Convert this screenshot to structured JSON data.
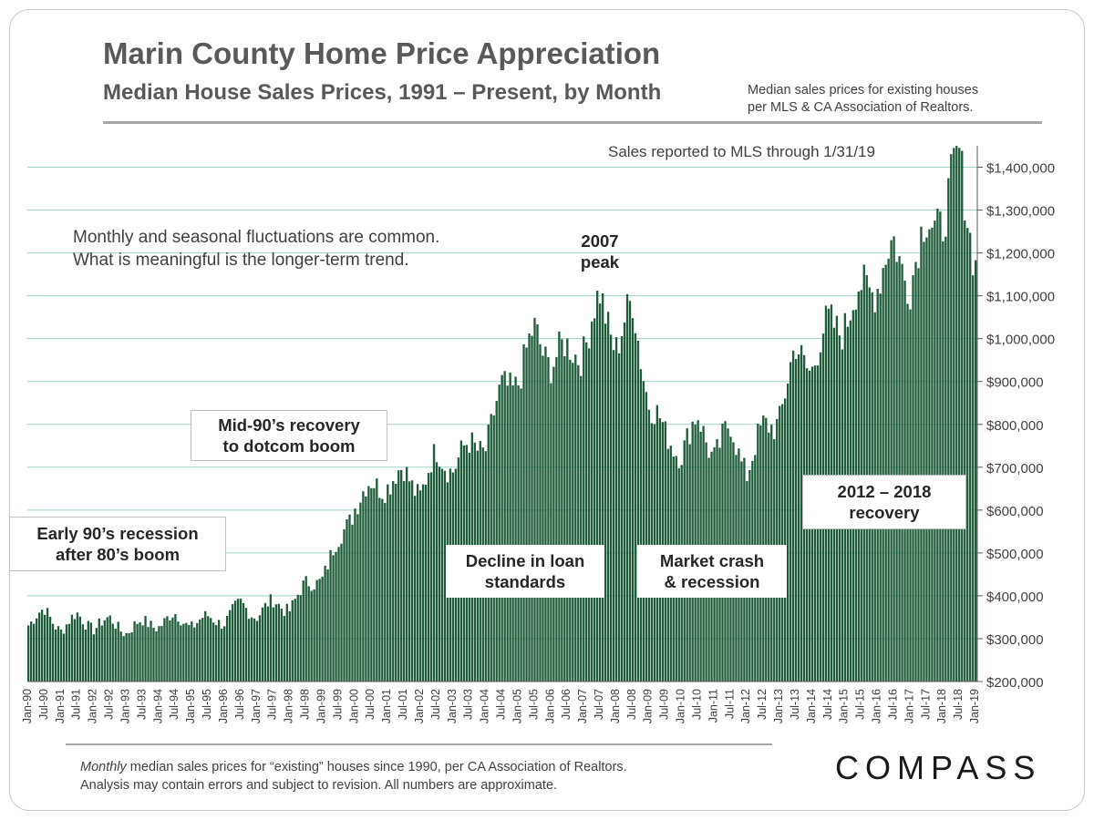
{
  "header": {
    "title": "Marin County Home Price Appreciation",
    "subtitle": "Median House Sales Prices, 1991 – Present, by Month",
    "source_note_line1": "Median sales prices for existing houses",
    "source_note_line2": "per MLS & CA Association of Realtors."
  },
  "annotations": {
    "reported": "Sales reported to MLS through 1/31/19",
    "fluct_line1": "Monthly and seasonal fluctuations are common.",
    "fluct_line2": "What is meaningful is the longer-term trend.",
    "peak_line1": "2007",
    "peak_line2": "peak",
    "mid90_line1": "Mid-90’s recovery",
    "mid90_line2": "to dotcom boom",
    "early90_line1": "Early 90’s recession",
    "early90_line2": "after 80’s boom",
    "loan_line1": "Decline in loan",
    "loan_line2": "standards",
    "crash_line1": "Market crash",
    "crash_line2": "& recession",
    "recovery_line1": "2012 – 2018",
    "recovery_line2": "recovery"
  },
  "footer": {
    "footnote_italic": "Monthly",
    "footnote_line1_rest": " median sales prices for “existing” houses since 1990, per CA Association of Realtors.",
    "footnote_line2": "Analysis may contain errors and subject to revision. All numbers are approximate.",
    "logo": "COMPASS"
  },
  "colors": {
    "bar": "#1f5c3a",
    "grid": "#9ed1c9",
    "text": "#595959"
  },
  "chart_data": {
    "type": "bar",
    "title": "Marin County Home Price Appreciation",
    "subtitle": "Median House Sales Prices, 1991 – Present, by Month",
    "xlabel": "",
    "ylabel": "",
    "ylim": [
      200000,
      1450000
    ],
    "y_ticks": [
      200000,
      300000,
      400000,
      500000,
      600000,
      700000,
      800000,
      900000,
      1000000,
      1100000,
      1200000,
      1300000,
      1400000
    ],
    "y_tick_labels": [
      "$200,000",
      "$300,000",
      "$400,000",
      "$500,000",
      "$600,000",
      "$700,000",
      "$800,000",
      "$900,000",
      "$1,000,000",
      "$1,100,000",
      "$1,200,000",
      "$1,300,000",
      "$1,400,000"
    ],
    "x_tick_labels": [
      "Jan-90",
      "Jul-90",
      "Jan-91",
      "Jul-91",
      "Jan-92",
      "Jul-92",
      "Jan-93",
      "Jul-93",
      "Jan-94",
      "Jul-94",
      "Jan-95",
      "Jul-95",
      "Jan-96",
      "Jul-96",
      "Jan-97",
      "Jul-97",
      "Jan-98",
      "Jul-98",
      "Jan-99",
      "Jul-99",
      "Jan-00",
      "Jul-00",
      "Jan-01",
      "Jul-01",
      "Jan-02",
      "Jul-02",
      "Jan-03",
      "Jul-03",
      "Jan-04",
      "Jul-04",
      "Jan-05",
      "Jul-05",
      "Jan-06",
      "Jul-06",
      "Jan-07",
      "Jul-07",
      "Jan-08",
      "Jul-08",
      "Jan-09",
      "Jul-09",
      "Jan-10",
      "Jul-10",
      "Jan-11",
      "Jul-11",
      "Jan-12",
      "Jul-12",
      "Jan-13",
      "Jul-13",
      "Jan-14",
      "Jul-14",
      "Jan-15",
      "Jul-15",
      "Jan-16",
      "Jul-16",
      "Jan-17",
      "Jul-17",
      "Jan-18",
      "Jul-18",
      "Jan-19"
    ],
    "grid": true,
    "legend": "none",
    "series_anchor_months": [
      "Jan-90",
      "Jul-90",
      "Jan-91",
      "Jul-91",
      "Jan-92",
      "Jul-92",
      "Jan-93",
      "Jul-93",
      "Jan-94",
      "Jul-94",
      "Jan-95",
      "Jul-95",
      "Jan-96",
      "Jul-96",
      "Jan-97",
      "Jul-97",
      "Jan-98",
      "Jul-98",
      "Jan-99",
      "Jul-99",
      "Jan-00",
      "Jul-00",
      "Jan-01",
      "Jul-01",
      "Jan-02",
      "Jul-02",
      "Jan-03",
      "Jul-03",
      "Jan-04",
      "Jul-04",
      "Jan-05",
      "Jul-05",
      "Jan-06",
      "Jul-06",
      "Jan-07",
      "Jul-07",
      "Jan-08",
      "Jul-08",
      "Jan-09",
      "Jul-09",
      "Jan-10",
      "Jul-10",
      "Jan-11",
      "Jul-11",
      "Jan-12",
      "Jul-12",
      "Jan-13",
      "Jul-13",
      "Jan-14",
      "Jul-14",
      "Jan-15",
      "Jul-15",
      "Jan-16",
      "Jul-16",
      "Jan-17",
      "Jul-17",
      "Jan-18",
      "Jul-18",
      "Jan-19"
    ],
    "series_anchor_values": [
      340000,
      360000,
      325000,
      350000,
      330000,
      340000,
      320000,
      335000,
      335000,
      350000,
      335000,
      345000,
      345000,
      375000,
      360000,
      380000,
      375000,
      420000,
      450000,
      520000,
      620000,
      650000,
      670000,
      680000,
      650000,
      720000,
      710000,
      740000,
      760000,
      870000,
      920000,
      1000000,
      960000,
      960000,
      990000,
      1080000,
      1000000,
      1060000,
      870000,
      760000,
      750000,
      800000,
      740000,
      780000,
      700000,
      780000,
      830000,
      960000,
      950000,
      1020000,
      1050000,
      1100000,
      1150000,
      1200000,
      1150000,
      1250000,
      1300000,
      1400000,
      1200000
    ]
  }
}
